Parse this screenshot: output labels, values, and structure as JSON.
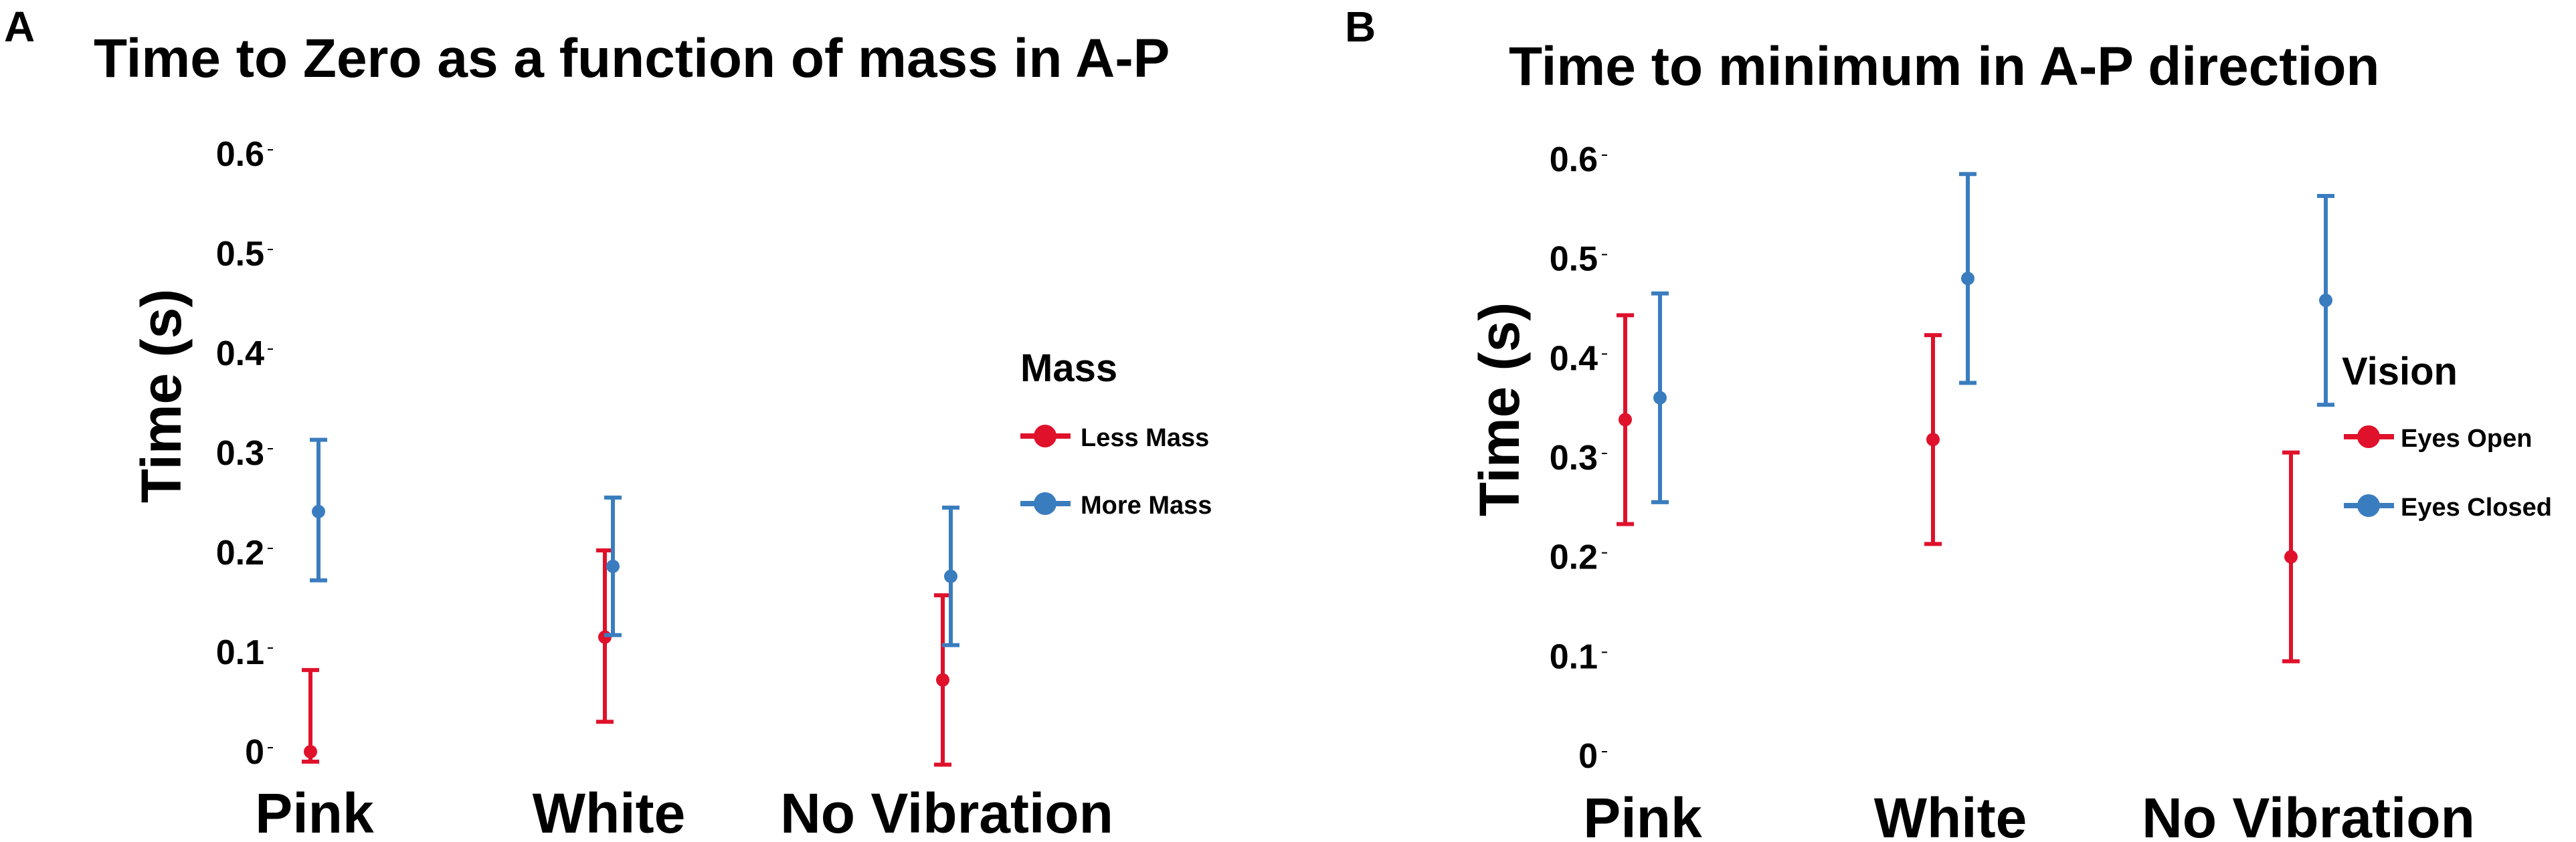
{
  "chart_data": [
    {
      "panel_label": "A",
      "type": "scatter",
      "title": "Time to Zero as a function of mass in A-P",
      "xlabel": "",
      "ylabel": "Time (s)",
      "categories": [
        "Pink",
        "White",
        "No Vibration"
      ],
      "ylim": [
        0,
        0.6
      ],
      "yticks": [
        "0",
        "0.1",
        "0.2",
        "0.3",
        "0.4",
        "0.5",
        "0.6"
      ],
      "legend_title": "Mass",
      "legend_position": "right",
      "series": [
        {
          "name": "Less Mass",
          "color": "#e0112b",
          "values": [
            0.0,
            0.115,
            0.072
          ],
          "lower": [
            -0.01,
            0.03,
            -0.013
          ],
          "upper": [
            0.082,
            0.202,
            0.157
          ]
        },
        {
          "name": "More Mass",
          "color": "#3a7dbf",
          "values": [
            0.241,
            0.186,
            0.176
          ],
          "lower": [
            0.172,
            0.117,
            0.107
          ],
          "upper": [
            0.313,
            0.255,
            0.245
          ]
        }
      ]
    },
    {
      "panel_label": "B",
      "type": "scatter",
      "title": "Time to minimum in A-P direction",
      "xlabel": "",
      "ylabel": "Time (s)",
      "categories": [
        "Pink",
        "White",
        "No Vibration"
      ],
      "ylim": [
        0,
        0.6
      ],
      "yticks": [
        "0",
        "0.1",
        "0.2",
        "0.3",
        "0.4",
        "0.5",
        "0.6"
      ],
      "legend_title": "Vision",
      "legend_position": "right",
      "series": [
        {
          "name": "Eyes Open",
          "color": "#e0112b",
          "values": [
            0.338,
            0.318,
            0.2
          ],
          "lower": [
            0.233,
            0.213,
            0.095
          ],
          "upper": [
            0.443,
            0.423,
            0.305
          ]
        },
        {
          "name": "Eyes Closed",
          "color": "#3a7dbf",
          "values": [
            0.36,
            0.48,
            0.458
          ],
          "lower": [
            0.255,
            0.375,
            0.353
          ],
          "upper": [
            0.465,
            0.585,
            0.563
          ]
        }
      ]
    }
  ]
}
